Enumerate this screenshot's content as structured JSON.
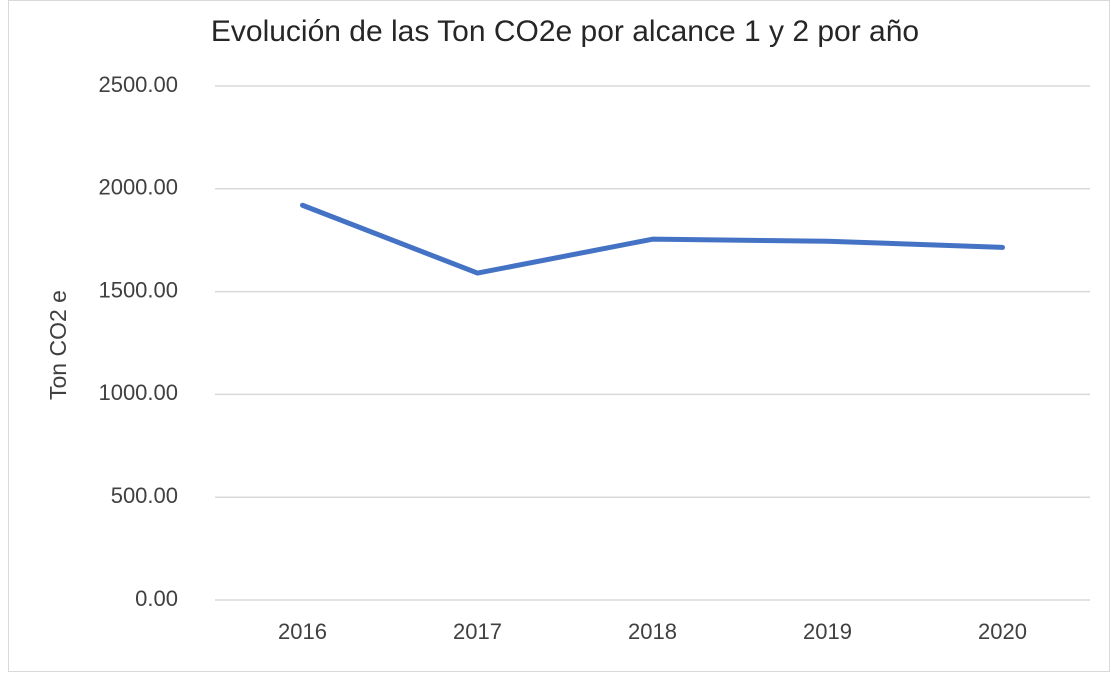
{
  "chart_data": {
    "type": "line",
    "title": "Evolución de las Ton CO2e por alcance 1 y 2 por año",
    "y_label": "Ton CO2 e",
    "categories": [
      "2016",
      "2017",
      "2018",
      "2019",
      "2020"
    ],
    "series": [
      {
        "name": "Ton CO2e",
        "color": "#4472c4",
        "values": [
          1920,
          1590,
          1755,
          1745,
          1715
        ]
      }
    ],
    "ylim": [
      0,
      2500
    ],
    "yticks": [
      {
        "value": 0,
        "label": "0.00"
      },
      {
        "value": 500,
        "label": "500.00"
      },
      {
        "value": 1000,
        "label": "1000.00"
      },
      {
        "value": 1500,
        "label": "1500.00"
      },
      {
        "value": 2000,
        "label": "2000.00"
      },
      {
        "value": 2500,
        "label": "2500.00"
      }
    ],
    "grid": true
  }
}
